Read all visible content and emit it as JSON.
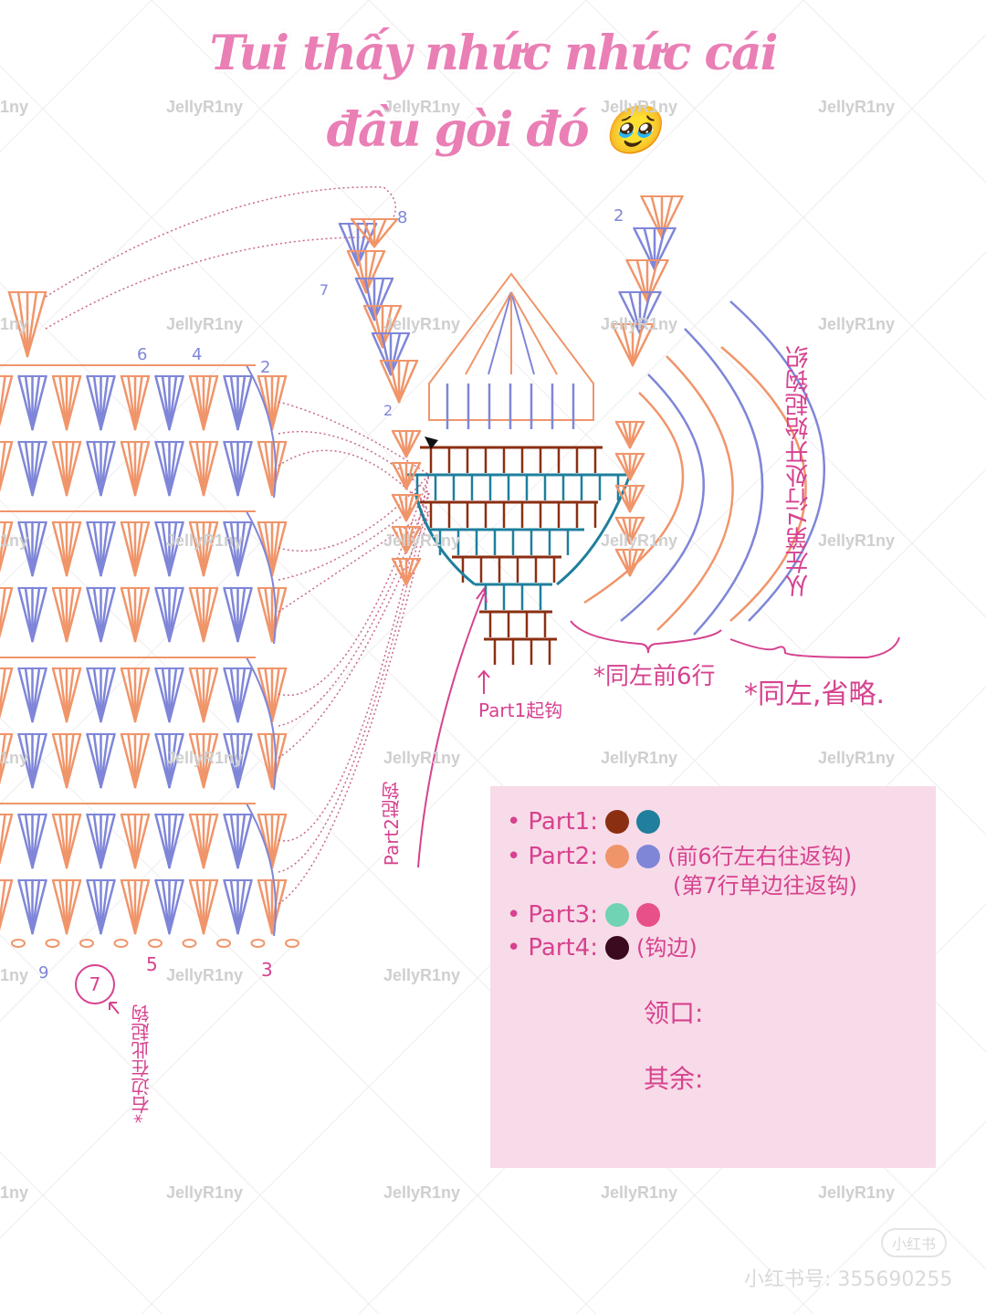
{
  "title": {
    "line1": "Tui thấy nhức nhức cái",
    "line2": "đầu gòi đó 🥹"
  },
  "watermark": "JellyR1ny",
  "watermark_partial": "1ny",
  "colors": {
    "orange": "#f0956a",
    "blue": "#7f86d8",
    "brown": "#8b2f12",
    "teal": "#1f7f9c",
    "pink": "#d6428f",
    "mint": "#6fd3b4",
    "rose": "#e8508a",
    "dark": "#3a0a1e",
    "legend_bg": "#f8dbe8"
  },
  "annotations": {
    "left_row_numbers_top": [
      "6",
      "4",
      "2"
    ],
    "left_row_numbers_bottom": [
      "9",
      "5",
      "3"
    ],
    "circled_number": "7",
    "start_note_left": "*右边在此起钩",
    "left_fan_numbers": [
      "8",
      "7",
      "6",
      "5",
      "4",
      "3",
      "2"
    ],
    "right_fan_number": "2",
    "part1_start": "Part1起钩",
    "part2_start": "Part2起钩",
    "same_first6": "*同左前6行",
    "same_omit": "*同左,省略.",
    "vertical_note": "从左第7行处开始起钩织"
  },
  "legend": {
    "items": [
      {
        "label": "Part1:",
        "colors": [
          "#8b2f12",
          "#1f7f9c"
        ],
        "note": ""
      },
      {
        "label": "Part2:",
        "colors": [
          "#f0956a",
          "#7f86d8"
        ],
        "note": "(前6行左右往返钩)",
        "note2": "(第7行单边往返钩)"
      },
      {
        "label": "Part3:",
        "colors": [
          "#6fd3b4",
          "#e8508a"
        ],
        "note": ""
      },
      {
        "label": "Part4:",
        "colors": [
          "#3a0a1e"
        ],
        "note": "(钩边)"
      }
    ],
    "neckline_label": "领口:",
    "rest_label": "其余:"
  },
  "platform": {
    "logo": "小红书",
    "id_text": "小红书号: 355690255"
  }
}
